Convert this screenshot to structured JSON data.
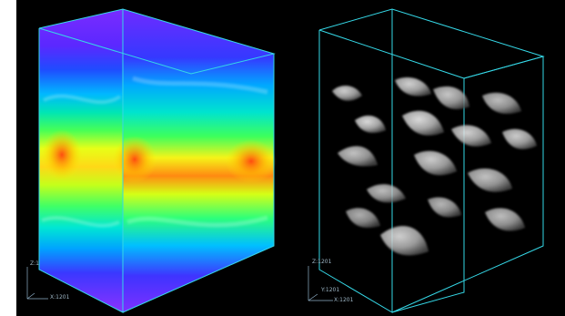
{
  "viewer": {
    "background_color": "#000000",
    "frame_color": "#35d7e6",
    "axis_color": "#8fb0c8"
  },
  "left_panel": {
    "render_mode": "pseudocolor volume",
    "colormap": "rainbow",
    "axis_labels": {
      "z": "Z:1",
      "x": "X:1201"
    }
  },
  "right_panel": {
    "render_mode": "grayscale isosurface",
    "axis_labels": {
      "z": "Z:1201",
      "y": "Y:1201",
      "x": "X:1201"
    }
  }
}
